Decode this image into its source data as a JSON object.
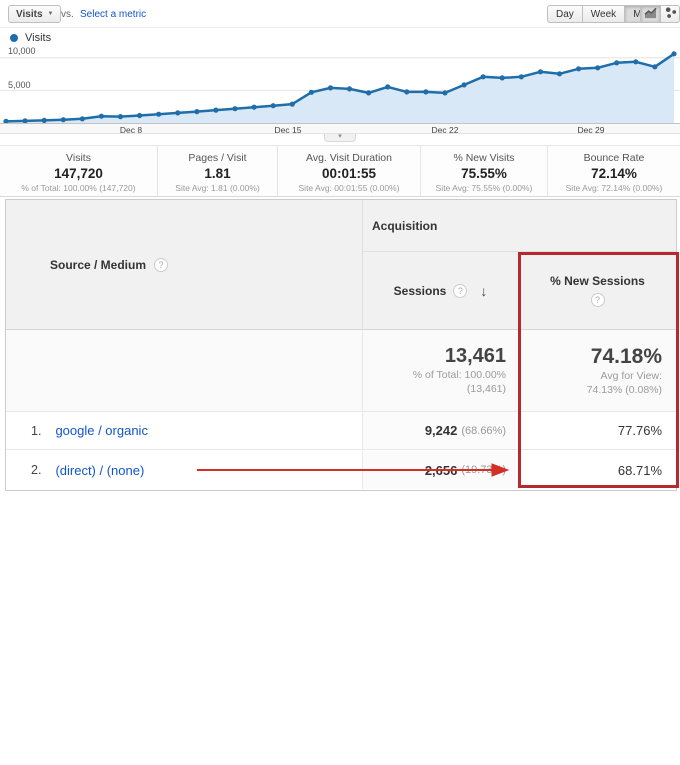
{
  "toolbar": {
    "metric_selector_label": "Visits",
    "vs_label": "vs.",
    "select_metric_label": "Select a metric",
    "granularity": [
      "Day",
      "Week",
      "Month"
    ],
    "granularity_selected": "Month"
  },
  "icons": {
    "caret_down": "▼",
    "help": "?",
    "sort_desc": "↓",
    "handle_chevron": "▾"
  },
  "legend": {
    "label": "Visits",
    "color": "#1f6ea9"
  },
  "chart_data": {
    "type": "area",
    "title": "Visits over time",
    "series": [
      {
        "name": "Visits",
        "color": "#1f6ea9",
        "fill": "#d9e8f6",
        "values": [
          250,
          320,
          400,
          500,
          650,
          1050,
          980,
          1150,
          1350,
          1550,
          1750,
          1980,
          2200,
          2430,
          2650,
          2900,
          4700,
          5385,
          5230,
          4615,
          5538,
          4770,
          4770,
          4615,
          5846,
          7077,
          6923,
          7077,
          7846,
          7538,
          8308,
          8462,
          9231,
          9385,
          8615,
          10615
        ]
      }
    ],
    "x_tick_labels": [
      "Dec 8",
      "Dec 15",
      "Dec 22",
      "Dec 29"
    ],
    "y_ticks": [
      5000,
      10000
    ],
    "y_tick_labels": [
      "5,000",
      "10,000"
    ],
    "ylim": [
      0,
      11500
    ],
    "grid": "horizontal",
    "legend_position": "top-left"
  },
  "metrics": [
    {
      "label": "Visits",
      "value": "147,720",
      "subtitle": "% of Total: 100.00% (147,720)"
    },
    {
      "label": "Pages / Visit",
      "value": "1.81",
      "subtitle": "Site Avg: 1.81 (0.00%)"
    },
    {
      "label": "Avg. Visit Duration",
      "value": "00:01:55",
      "subtitle": "Site Avg: 00:01:55 (0.00%)"
    },
    {
      "label": "% New Visits",
      "value": "75.55%",
      "subtitle": "Site Avg: 75.55% (0.00%)"
    },
    {
      "label": "Bounce Rate",
      "value": "72.14%",
      "subtitle": "Site Avg: 72.14% (0.00%)"
    }
  ],
  "table": {
    "dimension_header": "Source / Medium",
    "group_header": "Acquisition",
    "columns": [
      {
        "label": "Sessions",
        "sorted": "desc"
      },
      {
        "label": "% New Sessions",
        "highlighted": true
      }
    ],
    "totals": {
      "sessions": "13,461",
      "sessions_subtitle_1": "% of Total: 100.00%",
      "sessions_subtitle_2": "(13,461)",
      "new_sessions": "74.18%",
      "new_sessions_subtitle_1": "Avg for View:",
      "new_sessions_subtitle_2": "74.13% (0.08%)"
    },
    "rows": [
      {
        "rank": "1.",
        "source": "google / organic",
        "sessions": "9,242",
        "sessions_pct": "(68.66%)",
        "new_sessions": "77.76%"
      },
      {
        "rank": "2.",
        "source": "(direct) / (none)",
        "sessions": "2,656",
        "sessions_pct": "(19.73%)",
        "new_sessions": "68.71%"
      }
    ]
  },
  "annotations": {
    "highlight_box_color": "#b42a2e",
    "arrow_color": "#d22f27"
  }
}
